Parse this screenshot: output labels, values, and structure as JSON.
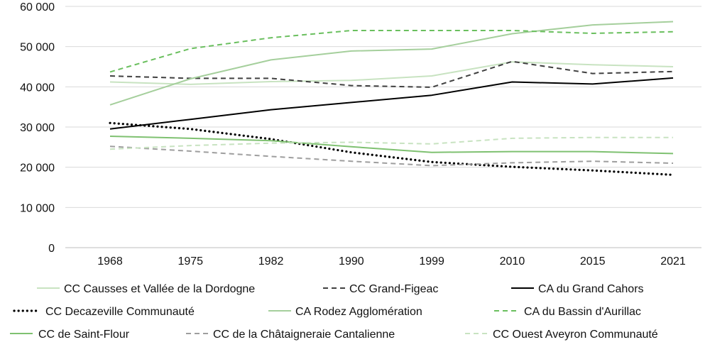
{
  "chart_data": {
    "type": "line",
    "title": "",
    "xlabel": "",
    "ylabel": "",
    "x": [
      "1968",
      "1975",
      "1982",
      "1990",
      "1999",
      "2010",
      "2015",
      "2021"
    ],
    "ylim": [
      0,
      60000
    ],
    "yticks": [
      0,
      10000,
      20000,
      30000,
      40000,
      50000,
      60000
    ],
    "ytick_labels": [
      "0",
      "10 000",
      "20 000",
      "30 000",
      "40 000",
      "50 000",
      "60 000"
    ],
    "grid": "horizontal",
    "legend_position": "bottom",
    "series": [
      {
        "name": "CC Causses et Vallée de la Dordogne",
        "color": "#c8e3c1",
        "dash": "solid",
        "values": [
          41200,
          40600,
          41300,
          41600,
          42700,
          46200,
          45500,
          45000
        ]
      },
      {
        "name": "CC Grand-Figeac",
        "color": "#404040",
        "dash": "dashed",
        "values": [
          42700,
          42100,
          42100,
          40300,
          39900,
          46300,
          43300,
          43800
        ]
      },
      {
        "name": "CA du Grand Cahors",
        "color": "#000000",
        "dash": "solid",
        "values": [
          29500,
          31900,
          34300,
          36100,
          37900,
          41200,
          40700,
          42200
        ]
      },
      {
        "name": "CC Decazeville Communauté",
        "color": "#000000",
        "dash": "dotted",
        "values": [
          31000,
          29500,
          27000,
          23700,
          21300,
          20100,
          19200,
          18100
        ]
      },
      {
        "name": "CA Rodez Agglomération",
        "color": "#a5cf9c",
        "dash": "solid",
        "values": [
          35500,
          42000,
          46700,
          48900,
          49400,
          53200,
          55400,
          56200
        ]
      },
      {
        "name": "CA du Bassin d'Aurillac",
        "color": "#6abf5e",
        "dash": "dashed",
        "values": [
          43700,
          49500,
          52200,
          54000,
          54000,
          54000,
          53300,
          53700
        ]
      },
      {
        "name": "CC de Saint-Flour",
        "color": "#7fc171",
        "dash": "solid",
        "values": [
          27700,
          27200,
          26600,
          25100,
          23700,
          23900,
          23900,
          23400
        ]
      },
      {
        "name": "CC de la Châtaigneraie Cantalienne",
        "color": "#9e9e9e",
        "dash": "dashed",
        "values": [
          25200,
          24000,
          22700,
          21500,
          20400,
          21100,
          21500,
          21000
        ]
      },
      {
        "name": "CC Ouest Aveyron Communauté",
        "color": "#c8e3c1",
        "dash": "dashed",
        "values": [
          24500,
          25400,
          26000,
          26200,
          25800,
          27200,
          27400,
          27400
        ]
      }
    ]
  }
}
